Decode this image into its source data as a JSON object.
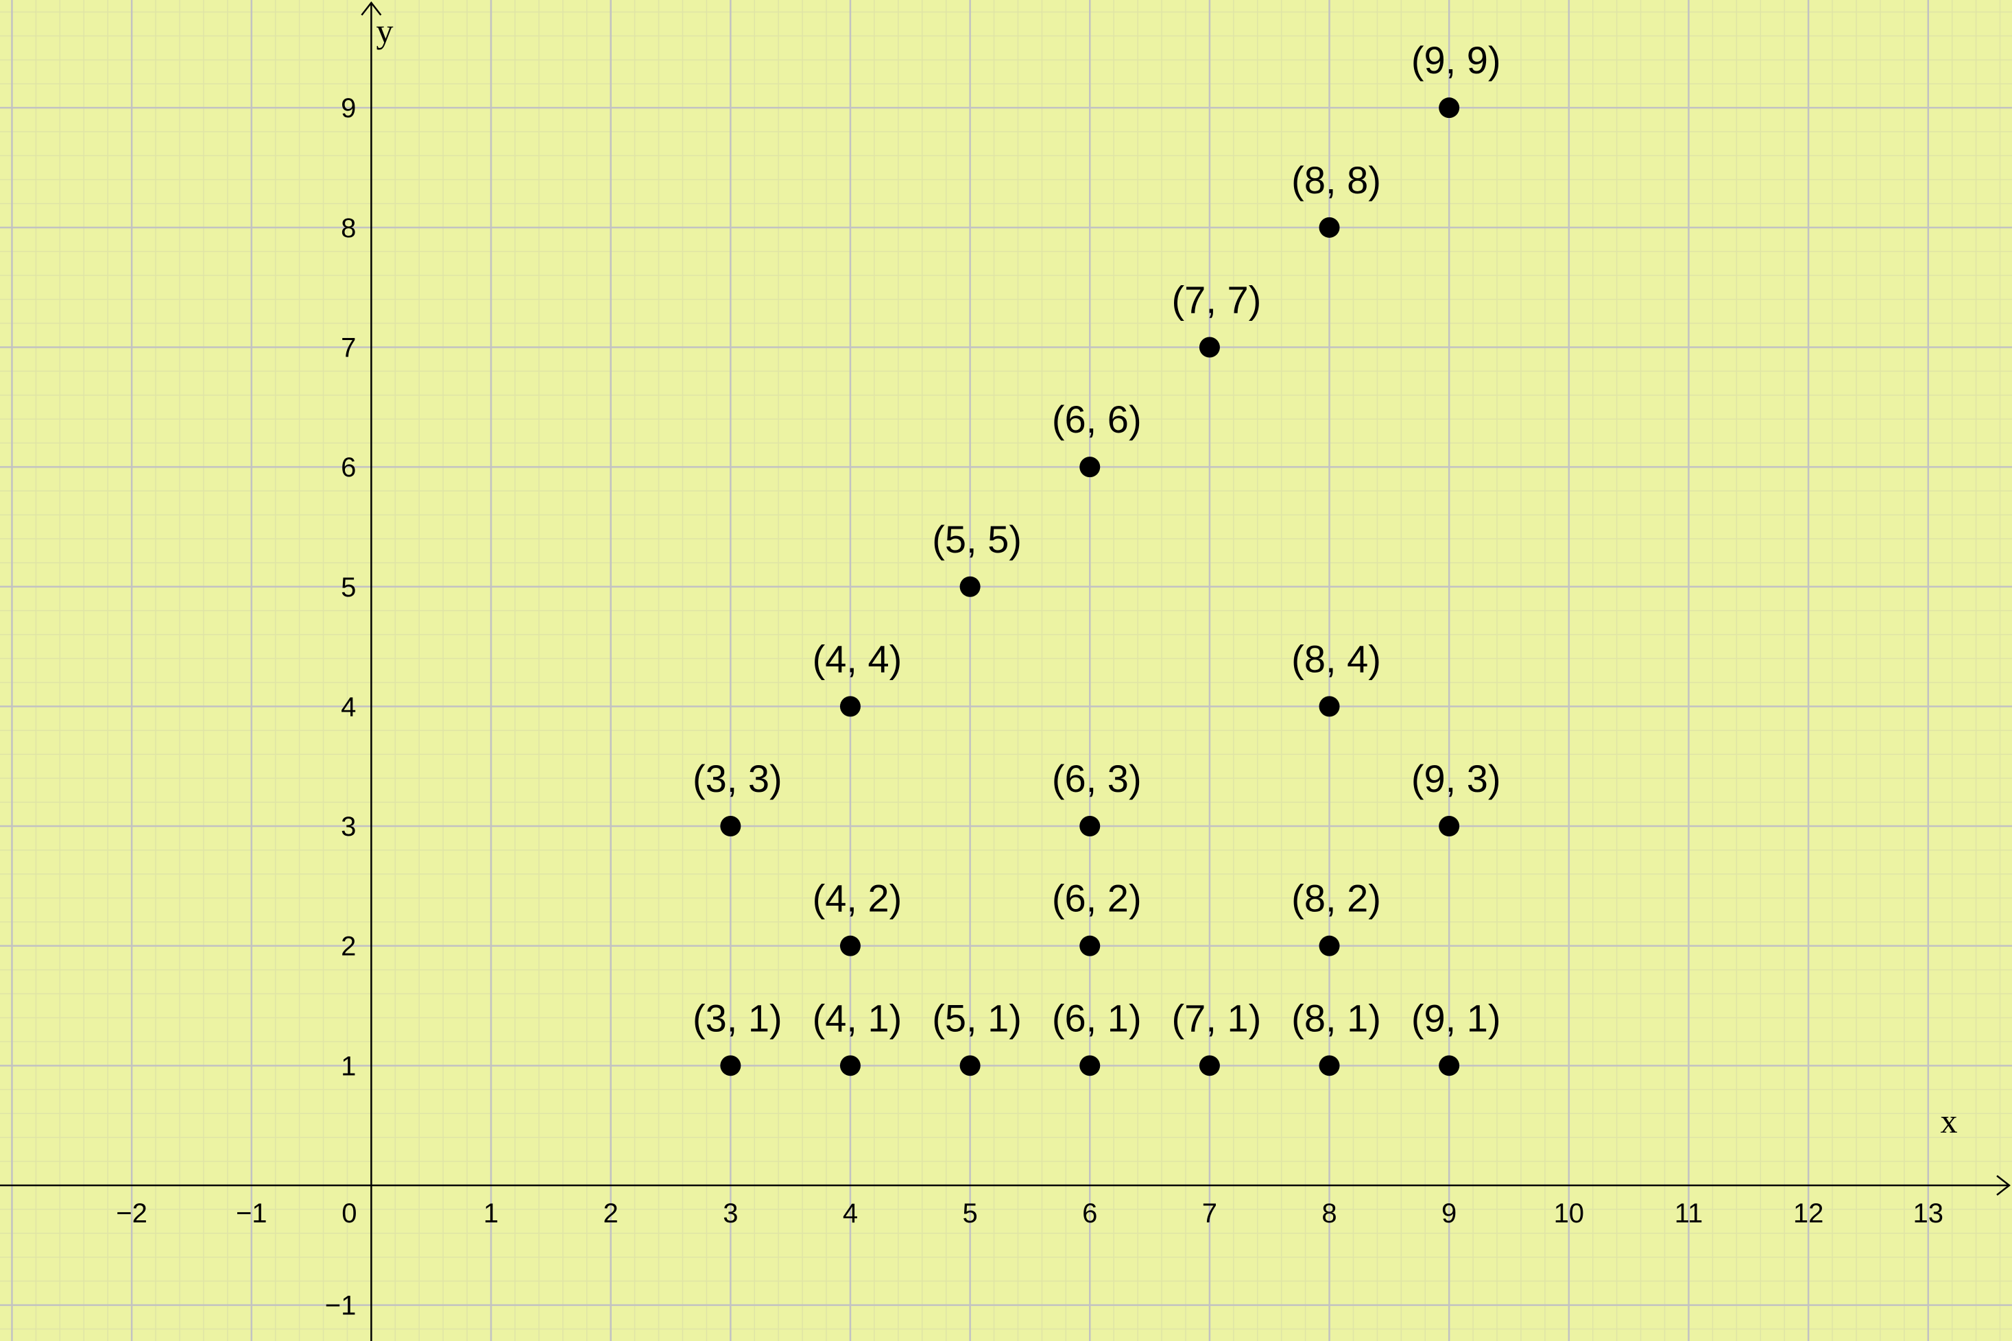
{
  "chart_data": {
    "type": "scatter",
    "xlabel": "x",
    "ylabel": "y",
    "xlim": [
      -3.1,
      13.7
    ],
    "ylim": [
      -1.3,
      9.9
    ],
    "x_ticks": [
      -2,
      -1,
      0,
      1,
      2,
      3,
      4,
      5,
      6,
      7,
      8,
      9,
      10,
      11,
      12,
      13
    ],
    "y_ticks": [
      -1,
      1,
      2,
      3,
      4,
      5,
      6,
      7,
      8,
      9
    ],
    "x_tick_labels": [
      "−2",
      "−1",
      "0",
      "1",
      "2",
      "3",
      "4",
      "5",
      "6",
      "7",
      "8",
      "9",
      "10",
      "11",
      "12",
      "13"
    ],
    "y_tick_labels": [
      "−1",
      "1",
      "2",
      "3",
      "4",
      "5",
      "6",
      "7",
      "8",
      "9"
    ],
    "grid": true,
    "minor_grid_step": 0.2,
    "colors": {
      "background": "#ecf3a3",
      "major_grid": "#c2c2c2",
      "minor_grid": "#dfe4a6",
      "axis": "#000000",
      "point": "#000000"
    },
    "points": [
      {
        "x": 9,
        "y": 9,
        "label": "(9, 9)"
      },
      {
        "x": 8,
        "y": 8,
        "label": "(8, 8)"
      },
      {
        "x": 7,
        "y": 7,
        "label": "(7, 7)"
      },
      {
        "x": 6,
        "y": 6,
        "label": "(6, 6)"
      },
      {
        "x": 5,
        "y": 5,
        "label": "(5, 5)"
      },
      {
        "x": 4,
        "y": 4,
        "label": "(4, 4)"
      },
      {
        "x": 8,
        "y": 4,
        "label": "(8, 4)"
      },
      {
        "x": 3,
        "y": 3,
        "label": "(3, 3)"
      },
      {
        "x": 6,
        "y": 3,
        "label": "(6, 3)"
      },
      {
        "x": 9,
        "y": 3,
        "label": "(9, 3)"
      },
      {
        "x": 4,
        "y": 2,
        "label": "(4, 2)"
      },
      {
        "x": 6,
        "y": 2,
        "label": "(6, 2)"
      },
      {
        "x": 8,
        "y": 2,
        "label": "(8, 2)"
      },
      {
        "x": 3,
        "y": 1,
        "label": "(3, 1)"
      },
      {
        "x": 4,
        "y": 1,
        "label": "(4, 1)"
      },
      {
        "x": 5,
        "y": 1,
        "label": "(5, 1)"
      },
      {
        "x": 6,
        "y": 1,
        "label": "(6, 1)"
      },
      {
        "x": 7,
        "y": 1,
        "label": "(7, 1)"
      },
      {
        "x": 8,
        "y": 1,
        "label": "(8, 1)"
      },
      {
        "x": 9,
        "y": 1,
        "label": "(9, 1)"
      }
    ]
  }
}
